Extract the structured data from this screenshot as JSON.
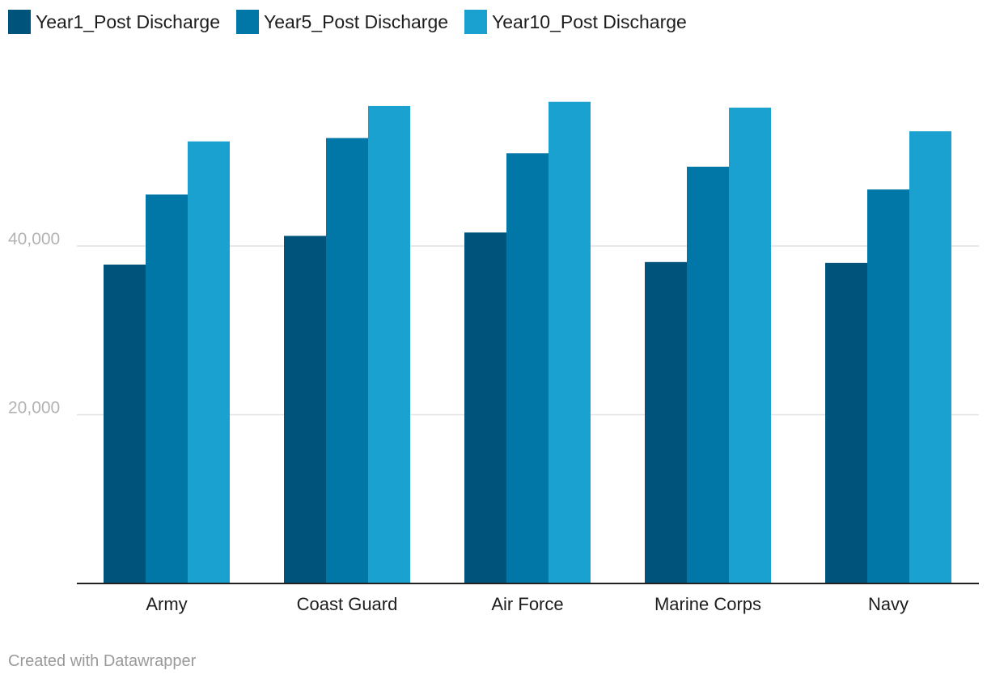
{
  "chart_data": {
    "type": "bar",
    "categories": [
      "Army",
      "Coast Guard",
      "Air Force",
      "Marine Corps",
      "Navy"
    ],
    "series": [
      {
        "name": "Year1_Post Discharge",
        "color": "#00537b",
        "values": [
          37800,
          41200,
          41600,
          38100,
          38000
        ]
      },
      {
        "name": "Year5_Post Discharge",
        "color": "#0077a6",
        "values": [
          46100,
          52800,
          51000,
          49400,
          46700
        ]
      },
      {
        "name": "Year10_Post Discharge",
        "color": "#1aa1cf",
        "values": [
          52400,
          56600,
          57100,
          56400,
          53600
        ]
      }
    ],
    "yticks": [
      {
        "value": 20000,
        "label": "20,000"
      },
      {
        "value": 40000,
        "label": "40,000"
      }
    ],
    "ylim": [
      0,
      60000
    ],
    "grid": true,
    "legend_position": "top-left",
    "title": "",
    "xlabel": "",
    "ylabel": ""
  },
  "footer": {
    "credit": "Created with Datawrapper"
  }
}
